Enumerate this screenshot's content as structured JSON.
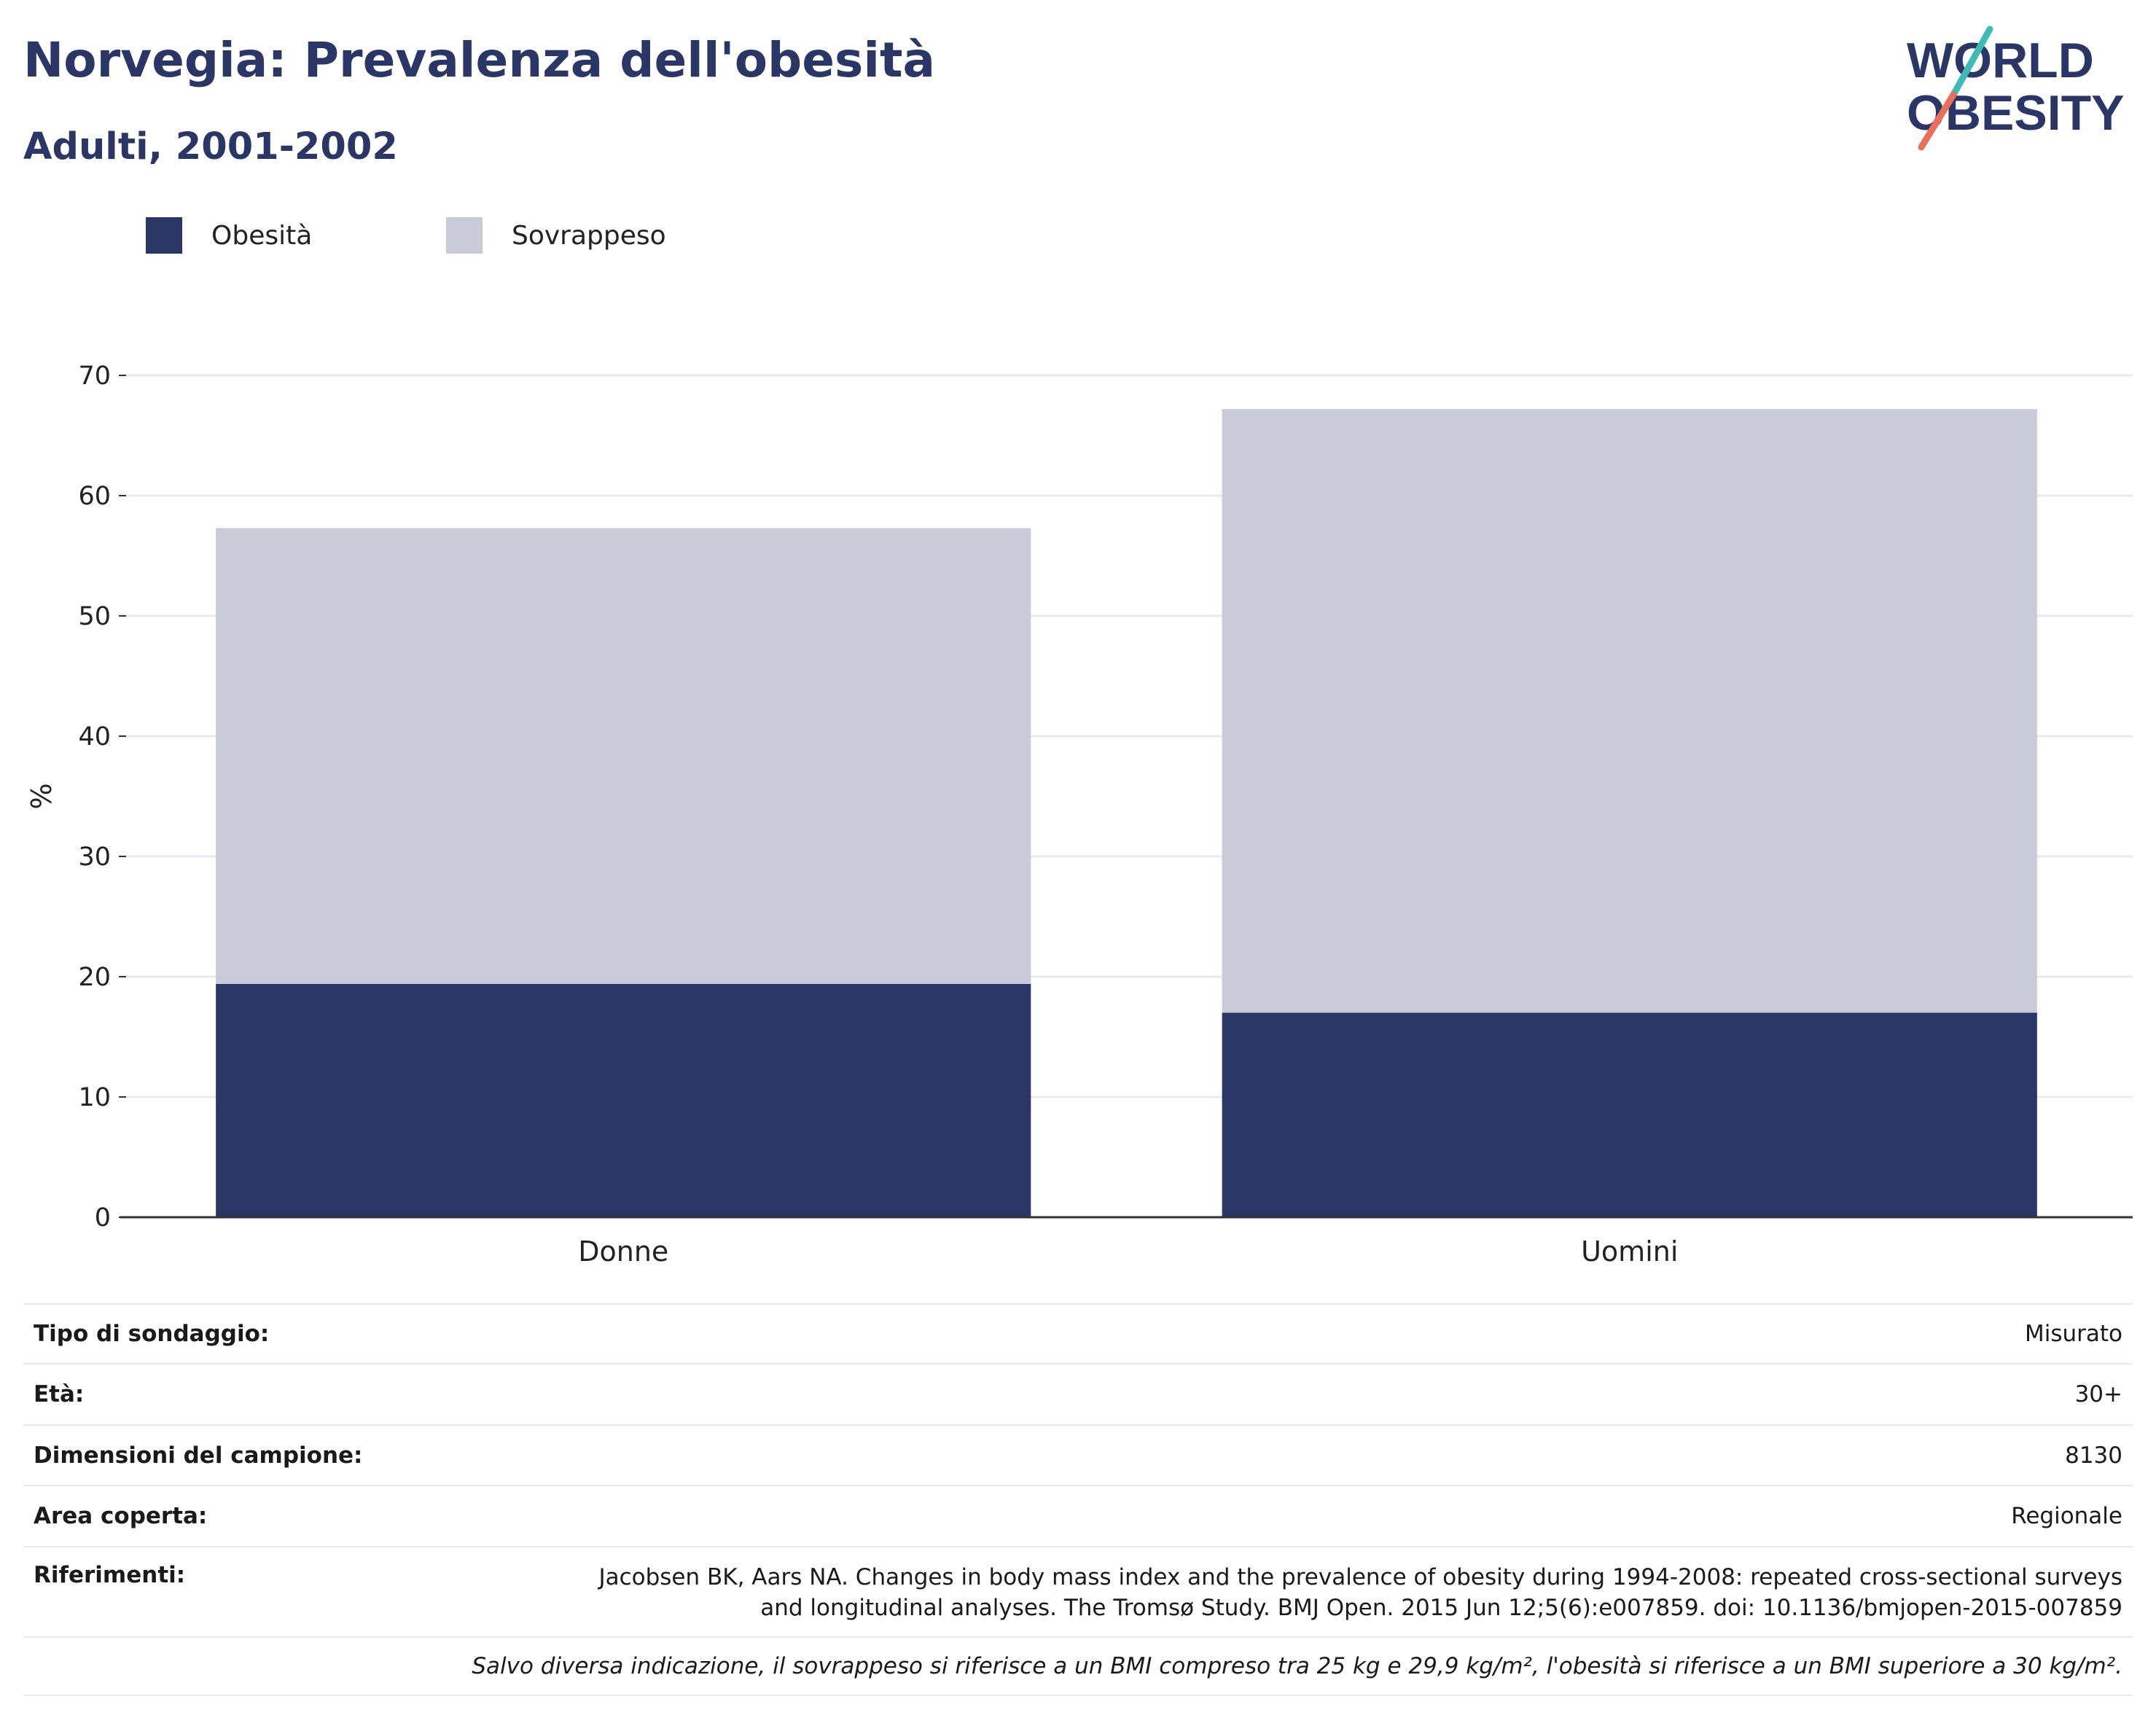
{
  "header": {
    "title": "Norvegia: Prevalenza dell'obesità",
    "subtitle": "Adulti, 2001-2002",
    "logo": {
      "line1": "WORLD",
      "line2": "OBESITY"
    }
  },
  "legend": [
    {
      "label": "Obesità",
      "color": "#2a3766"
    },
    {
      "label": "Sovrappeso",
      "color": "#c9ccd8"
    }
  ],
  "chart_data": {
    "type": "bar",
    "stacked": true,
    "categories": [
      "Donne",
      "Uomini"
    ],
    "series": [
      {
        "name": "Obesità",
        "color": "#2a3766",
        "values": [
          19.4,
          17.0
        ]
      },
      {
        "name": "Sovrappeso",
        "color": "#c9ccd8",
        "values": [
          37.9,
          50.2
        ]
      }
    ],
    "totals": [
      57.3,
      67.2
    ],
    "ylabel": "%",
    "ylim": [
      0,
      70
    ],
    "yticks": [
      0,
      10,
      20,
      30,
      40,
      50,
      60,
      70
    ],
    "grid": true,
    "legend_position": "top-left"
  },
  "info": {
    "rows": [
      {
        "key": "Tipo di sondaggio:",
        "value": "Misurato"
      },
      {
        "key": "Età:",
        "value": "30+"
      },
      {
        "key": "Dimensioni del campione:",
        "value": "8130"
      },
      {
        "key": "Area coperta:",
        "value": "Regionale"
      }
    ],
    "references": {
      "key": "Riferimenti:",
      "line1": "Jacobsen BK, Aars NA. Changes in body mass index and the prevalence of obesity during 1994-2008: repeated cross-sectional surveys",
      "line2": "and longitudinal analyses. The Tromsø Study. BMJ Open. 2015 Jun 12;5(6):e007859. doi: 10.1136/bmjopen-2015-007859"
    },
    "note": "Salvo diversa indicazione, il sovrappeso si riferisce a un BMI compreso tra 25 kg e 29,9 kg/m², l'obesità si riferisce a un BMI superiore a 30 kg/m²."
  }
}
